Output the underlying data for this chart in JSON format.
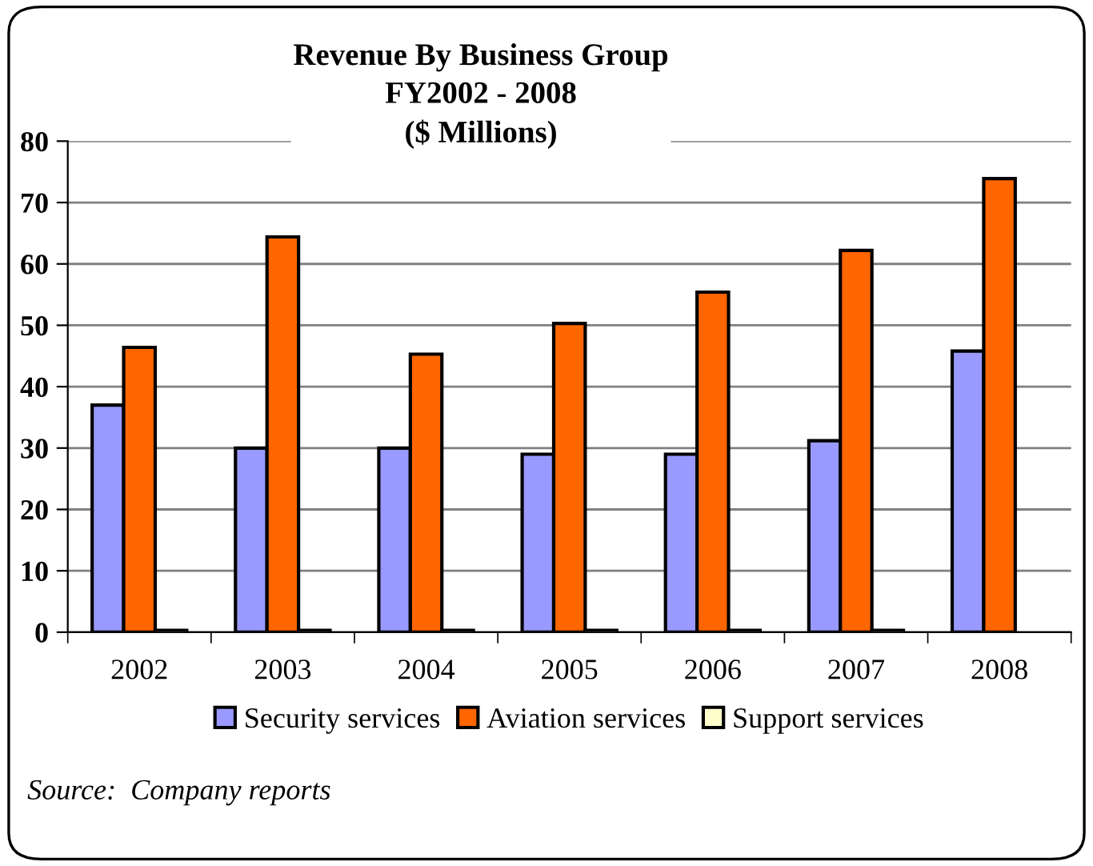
{
  "chart_data": {
    "type": "bar",
    "title": "Revenue By Business Group\nFY2002 - 2008\n($ Millions)",
    "categories": [
      "2002",
      "2003",
      "2004",
      "2005",
      "2006",
      "2007",
      "2008"
    ],
    "series": [
      {
        "name": "Security services",
        "color": "#9999ff",
        "values": [
          37,
          30,
          30,
          29,
          29,
          31.2,
          45.8
        ]
      },
      {
        "name": "Aviation services",
        "color": "#ff6600",
        "values": [
          46.4,
          64.4,
          45.3,
          50.3,
          55.4,
          62.2,
          73.9
        ]
      },
      {
        "name": "Support services",
        "color": "#ffffcc",
        "values": [
          0.3,
          0.3,
          0.3,
          0.3,
          0.3,
          0.3,
          0
        ]
      }
    ],
    "ylim": [
      0,
      80
    ],
    "yticks": [
      0,
      10,
      20,
      30,
      40,
      50,
      60,
      70,
      80
    ],
    "grid": "y",
    "legend": "bottom",
    "annotations": [
      "Source:  Company reports"
    ]
  }
}
